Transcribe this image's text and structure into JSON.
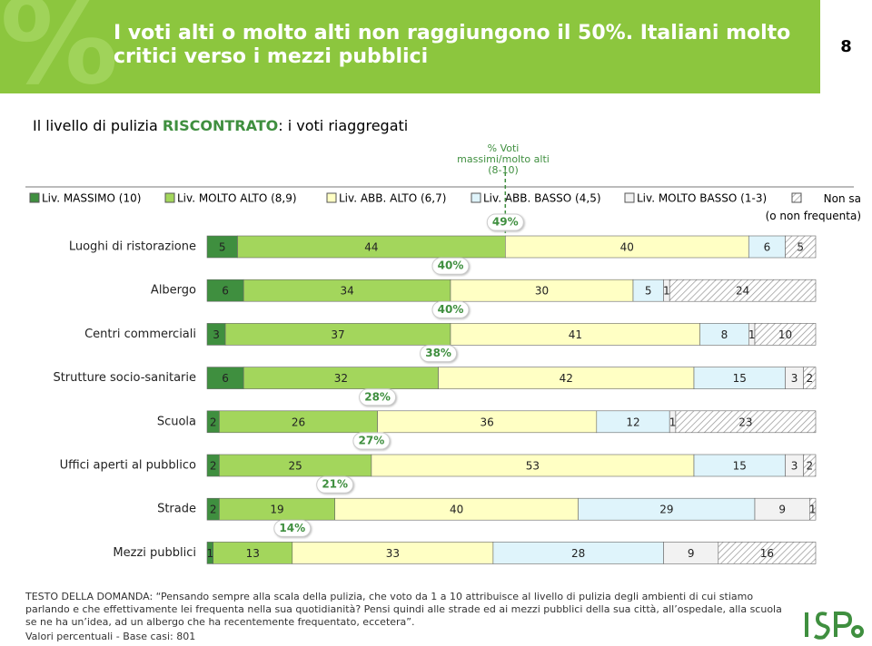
{
  "header": {
    "title": "I voti alti o molto alti non raggiungono il 50%. Italiani molto critici verso i mezzi pubblici",
    "page_number": "8"
  },
  "subtitle": [
    "Il livello di pulizia ",
    "RISCONTRATO",
    ": i voti riaggregati"
  ],
  "chart_data": {
    "type": "stacked-bar-h",
    "categories": [
      "Luoghi di ristorazione",
      "Albergo",
      "Centri commerciali",
      "Strutture socio-sanitarie",
      "Scuola",
      "Uffici aperti al pubblico",
      "Strade",
      "Mezzi pubblici"
    ],
    "xlim": [
      0,
      100
    ],
    "series": [
      {
        "name": "Liv. MASSIMO (10)",
        "color": "#3f8f3f",
        "values": [
          5,
          6,
          3,
          6,
          2,
          2,
          2,
          1
        ]
      },
      {
        "name": "Liv. MOLTO ALTO (8,9)",
        "color": "#a3d65c",
        "values": [
          44,
          34,
          37,
          32,
          26,
          25,
          19,
          13
        ]
      },
      {
        "name": "Liv. ABB. ALTO (6,7)",
        "color": "#ffffc4",
        "values": [
          40,
          30,
          41,
          42,
          36,
          53,
          40,
          33
        ]
      },
      {
        "name": "Liv. ABB. BASSO (4,5)",
        "color": "#dff4fb",
        "values": [
          6,
          5,
          8,
          15,
          12,
          15,
          29,
          28
        ]
      },
      {
        "name": "Liv. MOLTO BASSO (1-3)",
        "color": "#f2f2f2",
        "values": [
          null,
          1,
          1,
          3,
          1,
          3,
          9,
          9
        ]
      },
      {
        "name": "Non sa (o non frequenta)",
        "color": "hatch",
        "values": [
          5,
          24,
          10,
          2,
          23,
          2,
          1,
          16
        ]
      }
    ],
    "callouts": {
      "name": [
        "% Voti",
        "massimi/molto alti",
        "(8-10)"
      ],
      "values": [
        49,
        40,
        40,
        38,
        28,
        27,
        21,
        14
      ],
      "value_labels": [
        "49%",
        "40%",
        "40%",
        "38%",
        "28%",
        "27%",
        "21%",
        "14%"
      ]
    }
  },
  "footer": {
    "question": "TESTO DELLA DOMANDA: “Pensando sempre alla scala della pulizia, che voto da 1 a 10 attribuisce al livello di pulizia degli ambienti di cui stiamo parlando e che effettivamente lei frequenta nella sua quotidianità? Pensi quindi alle strade ed ai mezzi pubblici della sua città, all’ospedale, alla scuola se ne ha un’idea, ad un albergo che ha recentemente frequentato, eccetera”.",
    "base": "Valori percentuali - Base casi: 801"
  }
}
